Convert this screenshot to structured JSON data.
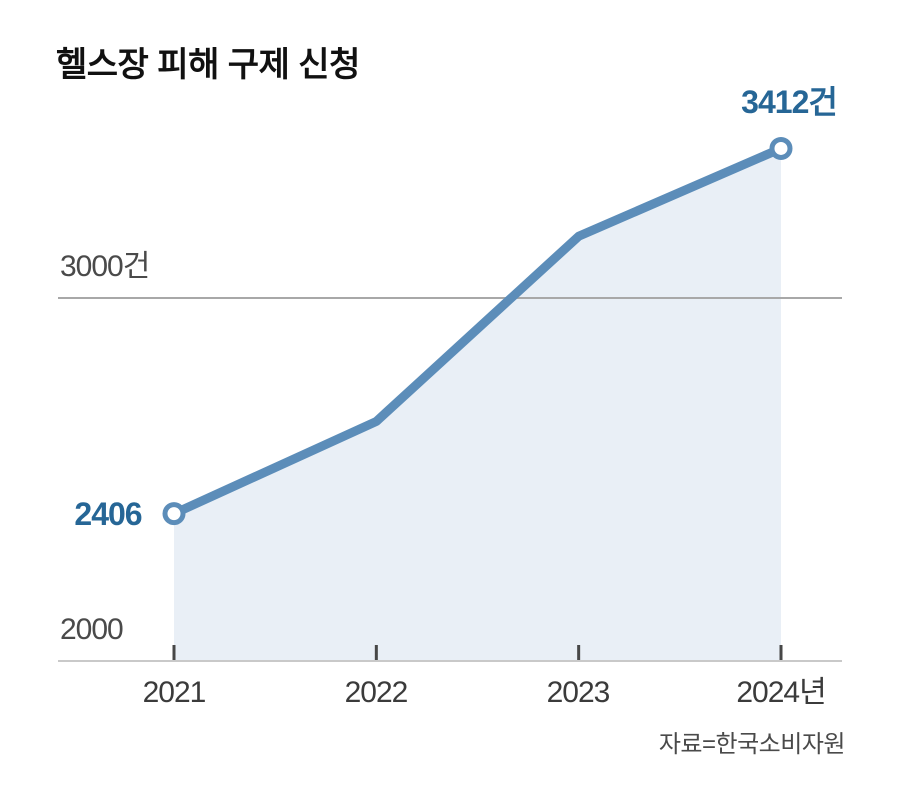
{
  "page": {
    "background": "#ffffff"
  },
  "title": "헬스장 피해 구제 신청",
  "source_credit": "자료=한국소비자원",
  "chart_data": {
    "type": "area",
    "categories": [
      "2021",
      "2022",
      "2023",
      "2024"
    ],
    "values": [
      2406,
      2660,
      3170,
      3412
    ],
    "title": "헬스장 피해 구제 신청",
    "xlabel": "",
    "ylabel": "건",
    "ylim": [
      2000,
      3500
    ],
    "x_tick_labels": [
      "2021",
      "2022",
      "2023",
      "2024년"
    ],
    "gridline": {
      "value": 3000,
      "label": "3000건"
    },
    "baseline": {
      "value": 2000,
      "label": "2000"
    },
    "point_labels": {
      "first": "2406",
      "last": "3412건"
    },
    "labeled_points": [
      0,
      3
    ],
    "grid": "single-horizontal-reference-line",
    "legend": "none",
    "note": "values for 2022 and 2023 estimated from plot position"
  },
  "colors": {
    "line": "#5c8db9",
    "area_fill": "#e9eff6",
    "value_label": "#266696",
    "gridline": "#a8a8a8",
    "baseline": "#c9c9c9",
    "tick": "#474747",
    "axis_text": "#3b3b3b",
    "title_text": "#111111",
    "marker_fill": "#ffffff"
  }
}
